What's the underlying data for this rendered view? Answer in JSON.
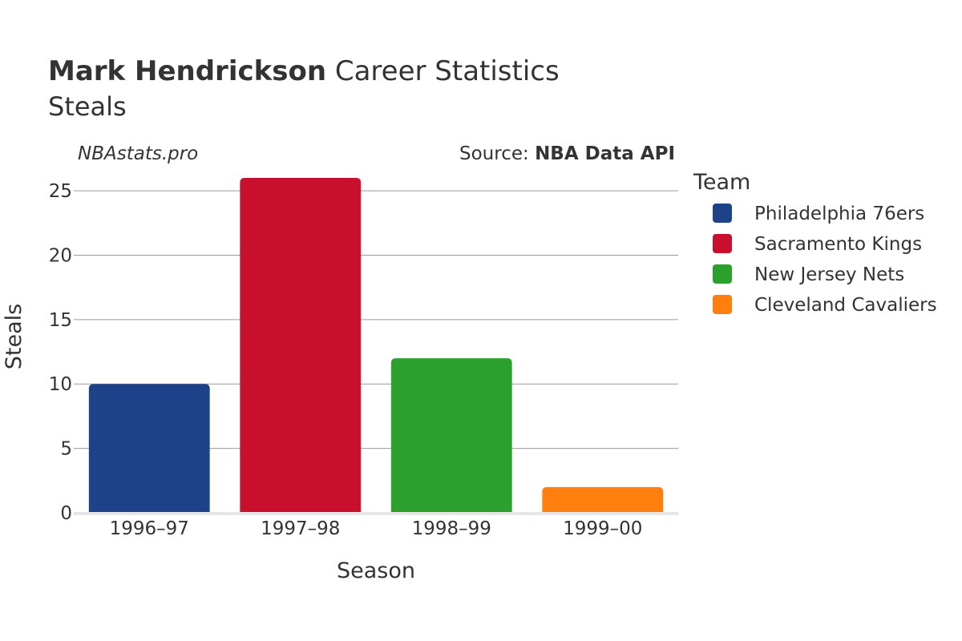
{
  "title": {
    "bold": "Mark Hendrickson",
    "rest": " Career Statistics",
    "subtitle": "Steals"
  },
  "watermark": "NBAstats.pro",
  "source": {
    "prefix": "Source: ",
    "name": "NBA Data API"
  },
  "legend": {
    "title": "Team"
  },
  "chart_data": {
    "type": "bar",
    "title": "Mark Hendrickson Career Statistics",
    "subtitle": "Steals",
    "xlabel": "Season",
    "ylabel": "Steals",
    "categories": [
      "1996–97",
      "1997–98",
      "1998–99",
      "1999–00"
    ],
    "ylim": [
      0,
      26.5
    ],
    "yticks": [
      0,
      5,
      10,
      15,
      20,
      25
    ],
    "grid": true,
    "legend_position": "right",
    "series": [
      {
        "name": "Philadelphia 76ers",
        "color": "#1d428a",
        "category": "1996–97",
        "value": 10
      },
      {
        "name": "Sacramento Kings",
        "color": "#c8102e",
        "category": "1997–98",
        "value": 26
      },
      {
        "name": "New Jersey Nets",
        "color": "#2ca02c",
        "category": "1998–99",
        "value": 12
      },
      {
        "name": "Cleveland Cavaliers",
        "color": "#ff7f0e",
        "category": "1999–00",
        "value": 2
      }
    ]
  }
}
